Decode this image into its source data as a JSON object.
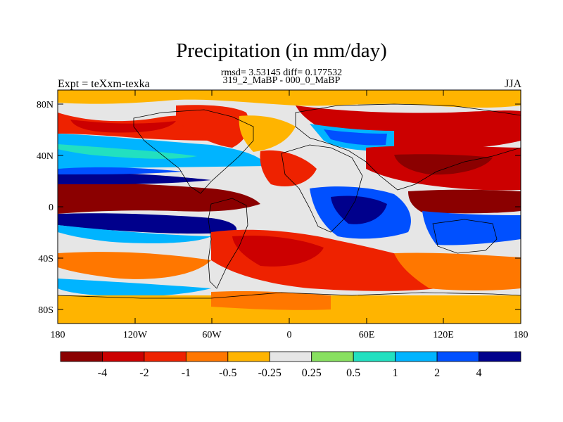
{
  "title": "Precipitation (in mm/day)",
  "stats_line": "rmsd= 3.53145 diff= 0.177532",
  "diff_line": "319_2_MaBP - 000_0_MaBP",
  "left_string": "Expt = teXxm-texka",
  "right_string": "JJA",
  "lat_labels": [
    "80N",
    "40N",
    "0",
    "40S",
    "80S"
  ],
  "lon_labels": [
    "180",
    "120W",
    "60W",
    "0",
    "60E",
    "120E",
    "180"
  ],
  "colorbar": {
    "labels": [
      "-4",
      "-2",
      "-1",
      "-0.5",
      "-0.25",
      "0.25",
      "0.5",
      "1",
      "2",
      "4"
    ],
    "colors": [
      "#8b0000",
      "#cc0000",
      "#ee2200",
      "#ff7700",
      "#ffb400",
      "#e6e6e6",
      "#88e060",
      "#22e0c0",
      "#00b4ff",
      "#0050ff",
      "#00008c"
    ]
  }
}
